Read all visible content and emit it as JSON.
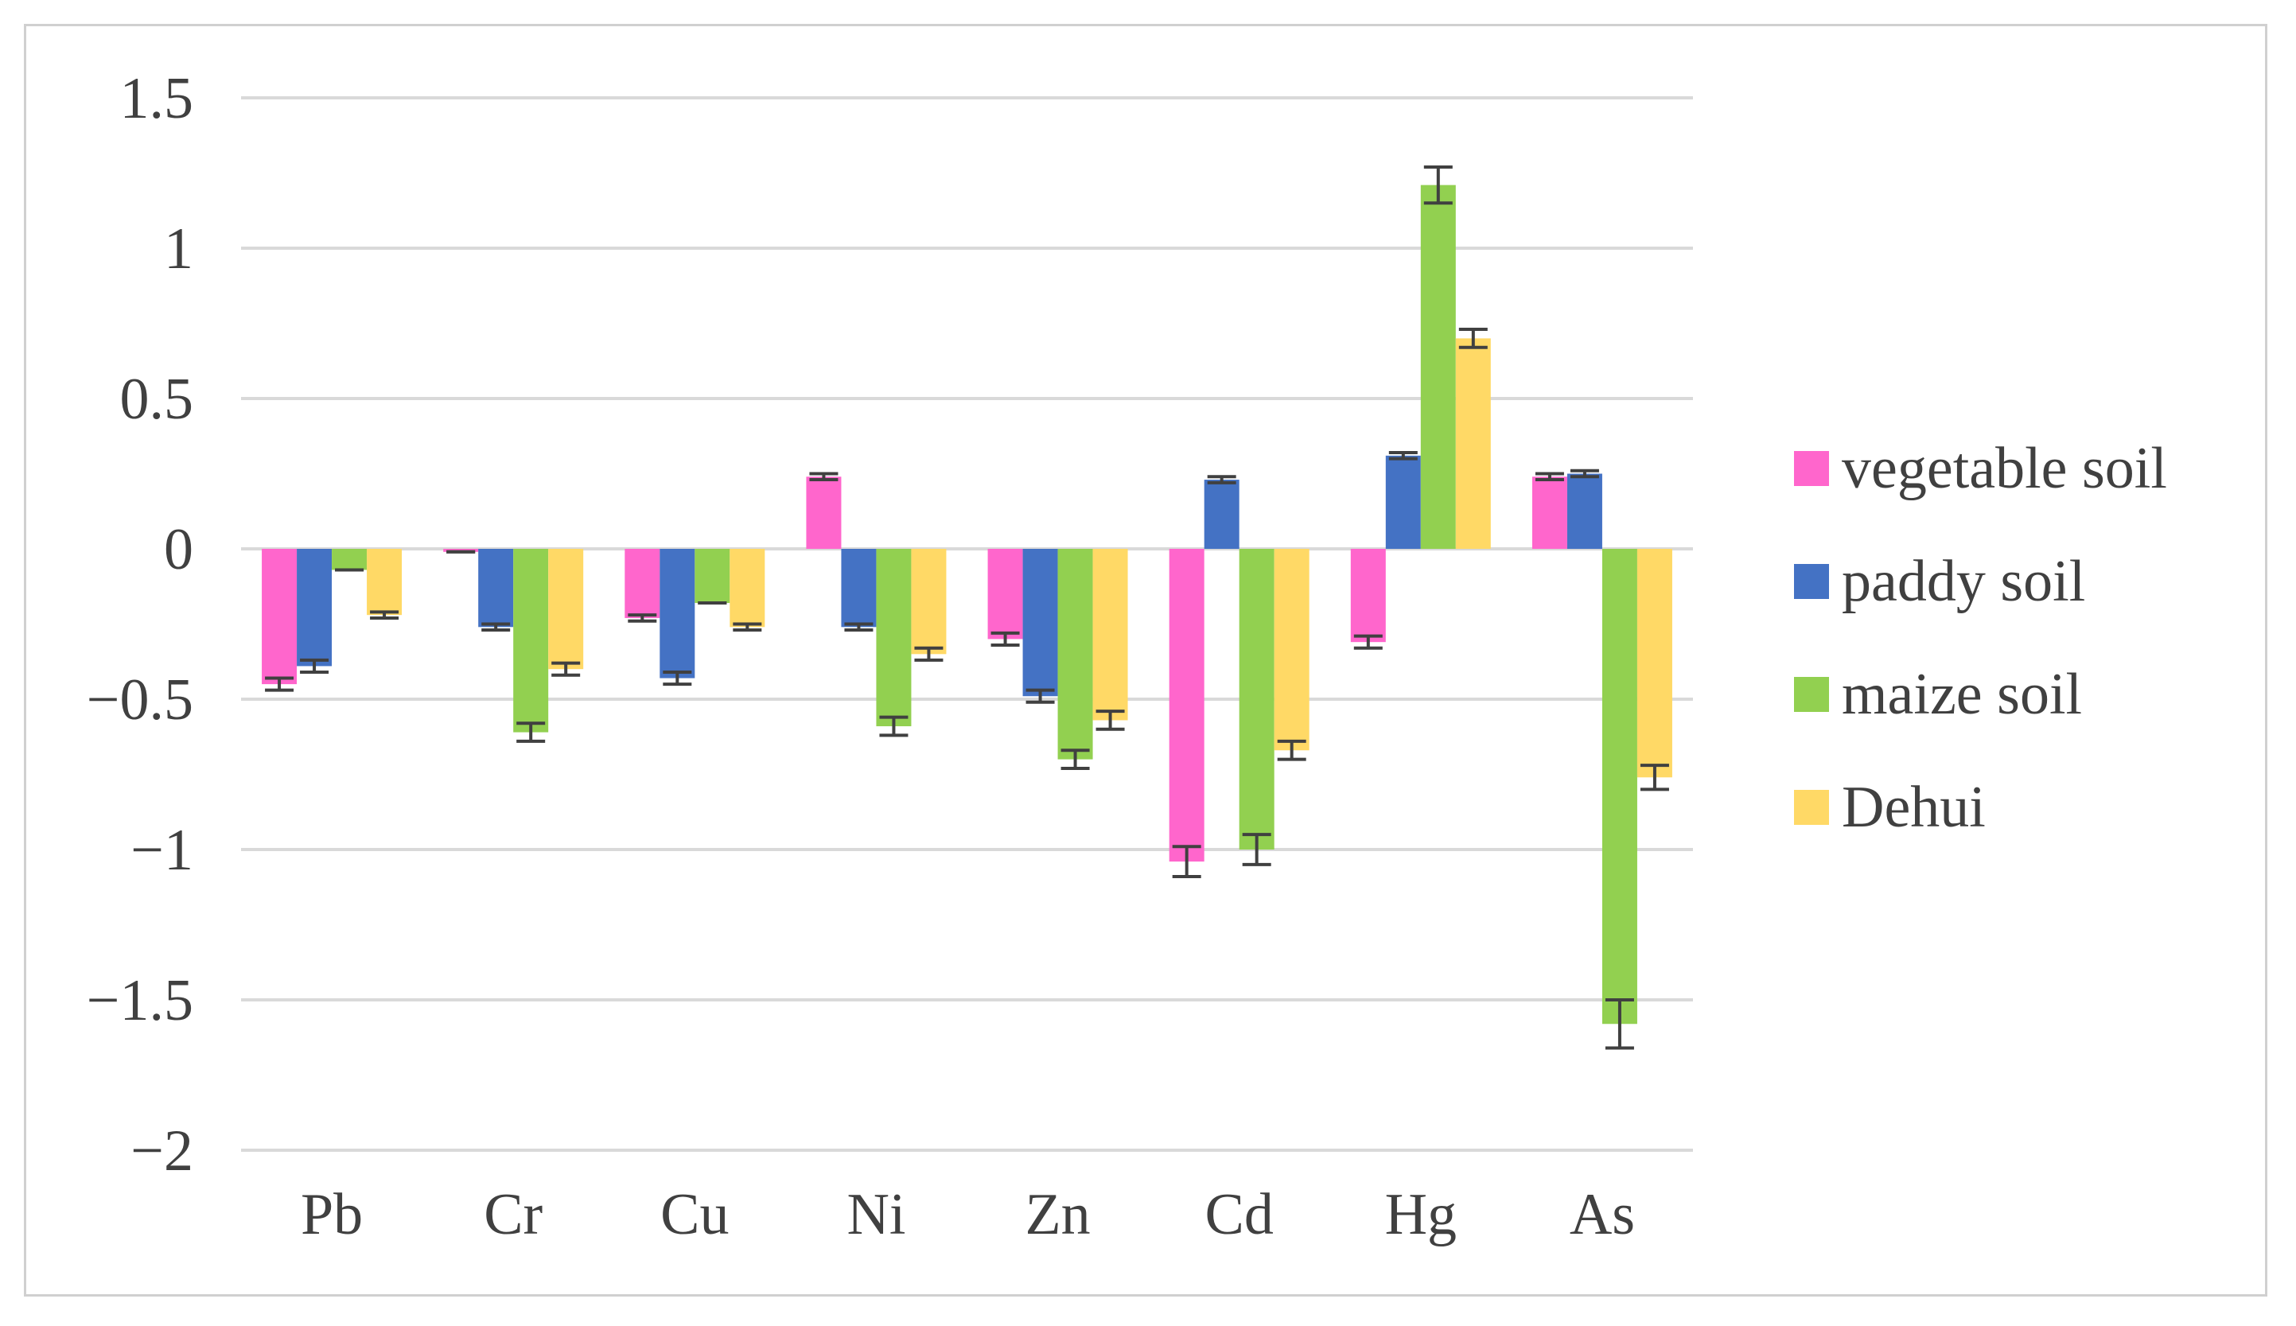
{
  "chart_data": {
    "type": "bar",
    "title": "",
    "xlabel": "",
    "ylabel": "",
    "categories": [
      "Pb",
      "Cr",
      "Cu",
      "Ni",
      "Zn",
      "Cd",
      "Hg",
      "As"
    ],
    "ylim": [
      -2,
      1.5
    ],
    "yticks": [
      1.5,
      1,
      0.5,
      0,
      -0.5,
      -1,
      -1.5,
      -2
    ],
    "ytick_labels": [
      "1.5",
      "1",
      "0.5",
      "0",
      "−0.5",
      "−1",
      "−1.5",
      "−2"
    ],
    "grid": true,
    "legend_position": "right",
    "series": [
      {
        "name": "vegetable soil",
        "color": "#ff66cc",
        "values": [
          -0.45,
          -0.01,
          -0.23,
          0.24,
          -0.3,
          -1.04,
          -0.31,
          0.24
        ],
        "errors": [
          0.02,
          0.0,
          0.01,
          0.01,
          0.02,
          0.05,
          0.02,
          0.01
        ]
      },
      {
        "name": "paddy soil",
        "color": "#4472c4",
        "values": [
          -0.39,
          -0.26,
          -0.43,
          -0.26,
          -0.49,
          0.23,
          0.31,
          0.25
        ],
        "errors": [
          0.02,
          0.01,
          0.02,
          0.01,
          0.02,
          0.01,
          0.01,
          0.01
        ]
      },
      {
        "name": "maize soil",
        "color": "#92d050",
        "values": [
          -0.07,
          -0.61,
          -0.18,
          -0.59,
          -0.7,
          -1.0,
          1.21,
          -1.58
        ],
        "errors": [
          0.0,
          0.03,
          0.0,
          0.03,
          0.03,
          0.05,
          0.06,
          0.08
        ]
      },
      {
        "name": "Dehui",
        "color": "#ffd966",
        "values": [
          -0.22,
          -0.4,
          -0.26,
          -0.35,
          -0.57,
          -0.67,
          0.7,
          -0.76
        ],
        "errors": [
          0.01,
          0.02,
          0.01,
          0.02,
          0.03,
          0.03,
          0.03,
          0.04
        ]
      }
    ]
  }
}
